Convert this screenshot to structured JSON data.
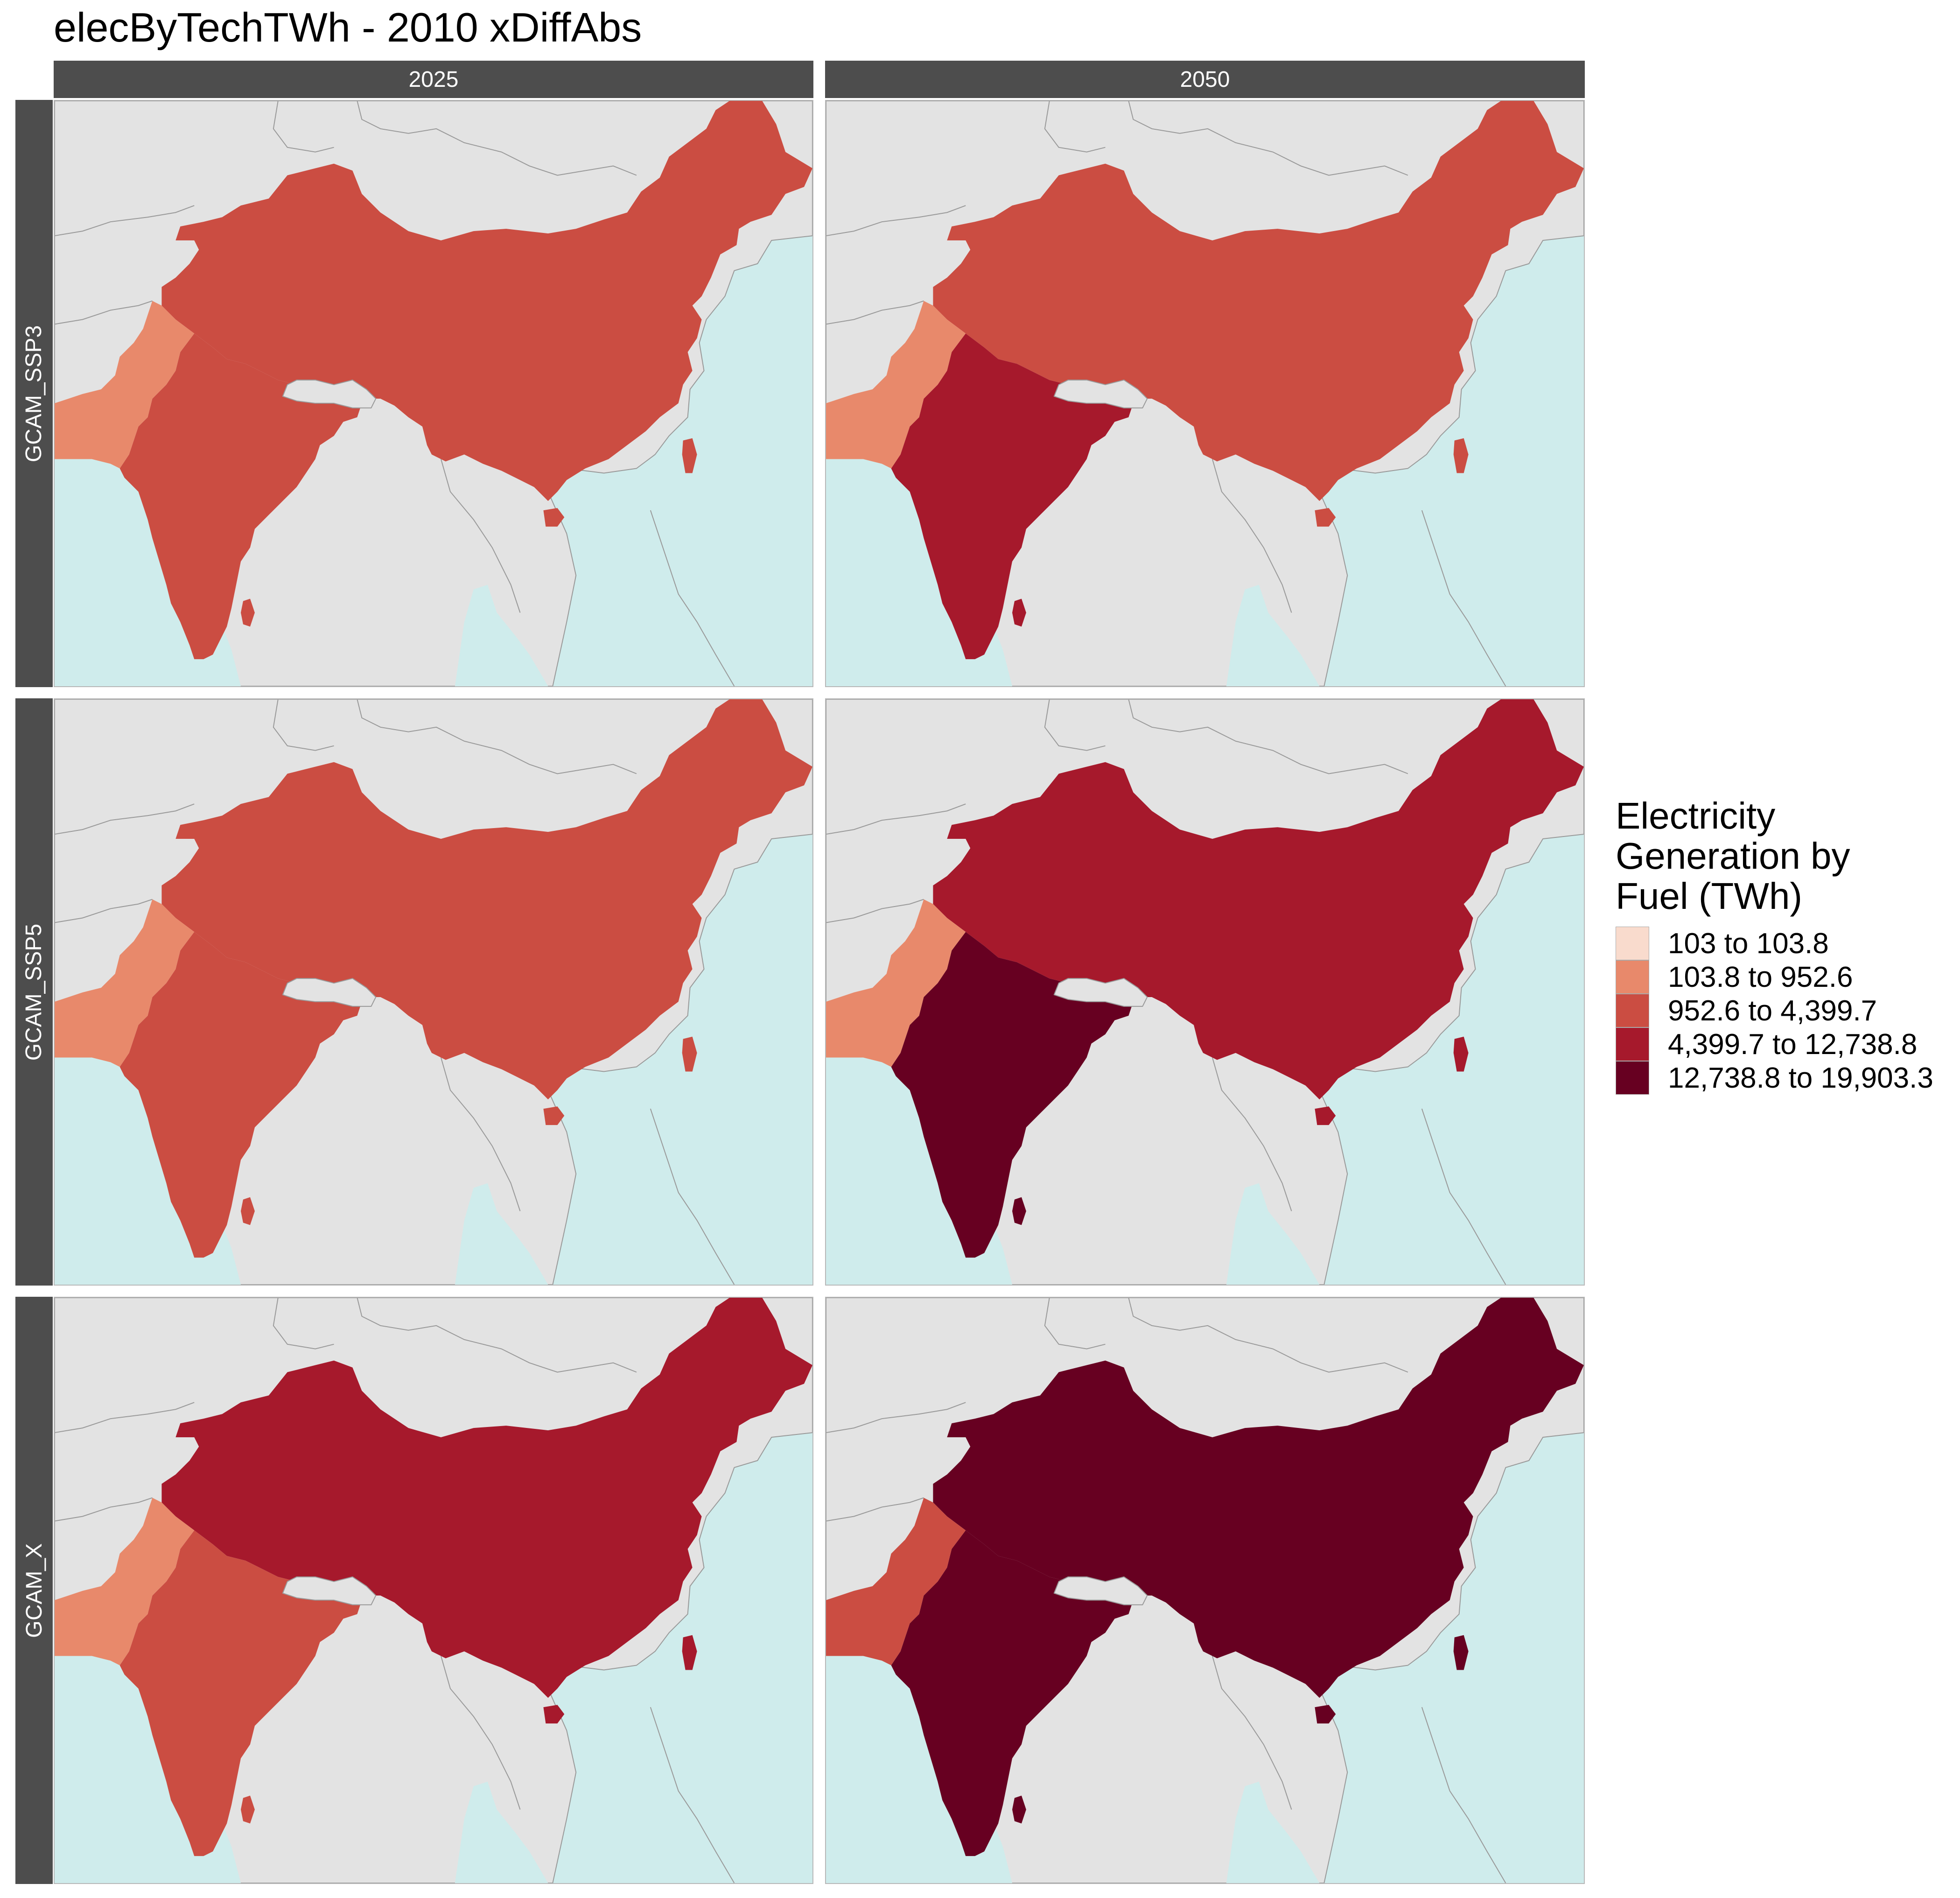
{
  "title": "elecByTechTWh - 2010 xDiffAbs",
  "columns": [
    "2025",
    "2050"
  ],
  "rows": [
    "GCAM_SSP3",
    "GCAM_SSP5",
    "GCAM_X"
  ],
  "legend": {
    "title": "Electricity Generation by Fuel (TWh)",
    "items": [
      {
        "label": "103 to 103.8",
        "color": "#f9dbcd"
      },
      {
        "label": "103.8 to 952.6",
        "color": "#e8896b"
      },
      {
        "label": "952.6 to 4,399.7",
        "color": "#cb4d42"
      },
      {
        "label": "4,399.7 to 12,738.8",
        "color": "#a6192c"
      },
      {
        "label": "12,738.8 to 19,903.3",
        "color": "#670021"
      }
    ]
  },
  "colors": {
    "land": "#e3e3e3",
    "sea": "#cfecec",
    "border": "#9a9a9a",
    "strip": "#4d4d4d"
  },
  "map_values": {
    "GCAM_SSP3": {
      "2025": {
        "china": 2,
        "india": 2,
        "pakistan": 1
      },
      "2050": {
        "china": 2,
        "india": 3,
        "pakistan": 1
      }
    },
    "GCAM_SSP5": {
      "2025": {
        "china": 2,
        "india": 2,
        "pakistan": 1
      },
      "2050": {
        "china": 3,
        "india": 4,
        "pakistan": 1
      }
    },
    "GCAM_X": {
      "2025": {
        "china": 3,
        "india": 2,
        "pakistan": 1
      },
      "2050": {
        "china": 4,
        "india": 4,
        "pakistan": 2
      }
    }
  }
}
